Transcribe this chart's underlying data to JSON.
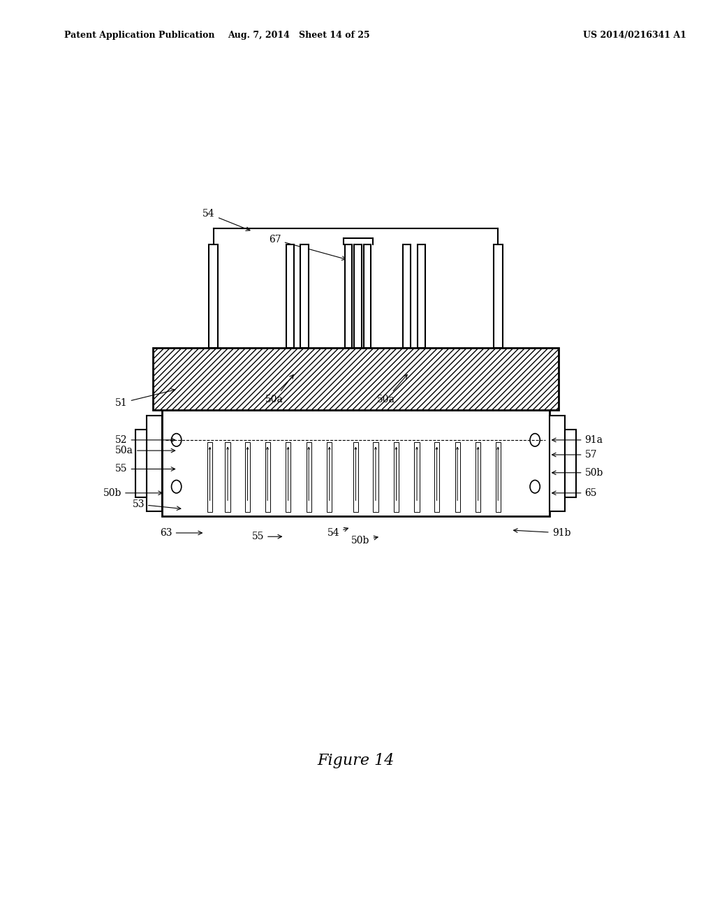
{
  "title": "Figure 14",
  "header_left": "Patent Application Publication",
  "header_mid": "Aug. 7, 2014   Sheet 14 of 25",
  "header_right": "US 2014/0216341 A1",
  "bg_color": "#ffffff",
  "line_color": "#000000"
}
